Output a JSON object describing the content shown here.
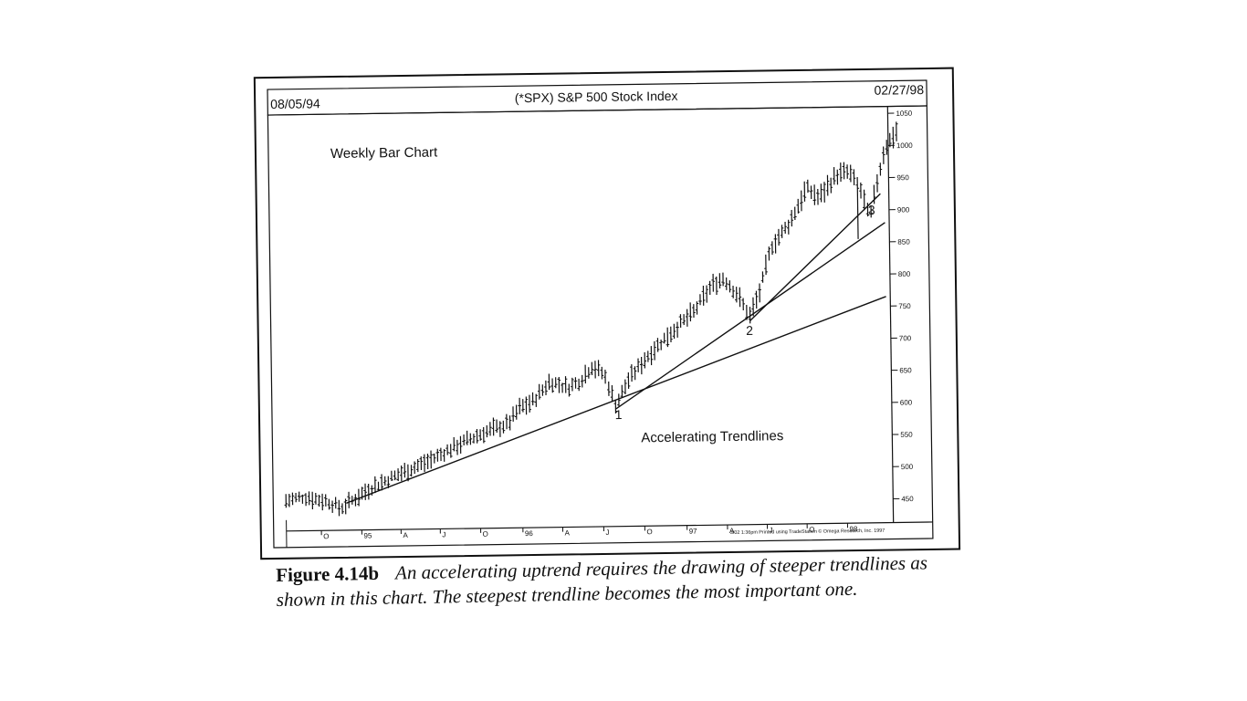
{
  "chart_data": {
    "type": "bar",
    "title": "(*SPX) S&P 500 Stock Index",
    "start_date": "08/05/94",
    "end_date": "02/27/98",
    "subtitle": "Weekly Bar Chart",
    "annotation": "Accelerating Trendlines",
    "footer_note": "3/02  1:36pm Printed using TradeStation © Omega Research, Inc. 1997",
    "ylim": [
      430,
      1065
    ],
    "yticks": [
      "1050",
      "1000",
      "950",
      "900",
      "850",
      "800",
      "750",
      "700",
      "650",
      "600",
      "550",
      "500",
      "450"
    ],
    "ytick_values": [
      1050,
      1000,
      950,
      900,
      850,
      800,
      750,
      700,
      650,
      600,
      550,
      500,
      450
    ],
    "xticks": [
      {
        "label": "O",
        "t": 0.058
      },
      {
        "label": "95",
        "t": 0.125
      },
      {
        "label": "A",
        "t": 0.19
      },
      {
        "label": "J",
        "t": 0.255
      },
      {
        "label": "O",
        "t": 0.322
      },
      {
        "label": "96",
        "t": 0.392
      },
      {
        "label": "A",
        "t": 0.458
      },
      {
        "label": "J",
        "t": 0.526
      },
      {
        "label": "O",
        "t": 0.594
      },
      {
        "label": "97",
        "t": 0.664
      },
      {
        "label": "A",
        "t": 0.731
      },
      {
        "label": "J",
        "t": 0.797
      },
      {
        "label": "O",
        "t": 0.863
      },
      {
        "label": "98",
        "t": 0.93
      }
    ],
    "trendlines": [
      {
        "label": "1",
        "from": {
          "t": 0.1,
          "v": 455
        },
        "to": {
          "t": 0.999,
          "v": 765
        }
      },
      {
        "label": "2",
        "from": {
          "t": 0.549,
          "v": 596
        },
        "to": {
          "t": 0.999,
          "v": 880
        }
      },
      {
        "label": "3",
        "from": {
          "t": 0.773,
          "v": 730
        },
        "to": {
          "t": 0.992,
          "v": 925
        }
      }
    ],
    "trendline_label_points": [
      {
        "label": "1",
        "t": 0.553,
        "v": 580
      },
      {
        "label": "2",
        "t": 0.772,
        "v": 708
      },
      {
        "label": "3",
        "t": 0.977,
        "v": 893
      }
    ],
    "anchors": [
      {
        "t": 0.0,
        "v": 460
      },
      {
        "t": 0.03,
        "v": 466
      },
      {
        "t": 0.05,
        "v": 462
      },
      {
        "t": 0.07,
        "v": 458
      },
      {
        "t": 0.09,
        "v": 447
      },
      {
        "t": 0.1,
        "v": 453
      },
      {
        "t": 0.14,
        "v": 478
      },
      {
        "t": 0.19,
        "v": 500
      },
      {
        "t": 0.24,
        "v": 520
      },
      {
        "t": 0.29,
        "v": 545
      },
      {
        "t": 0.33,
        "v": 562
      },
      {
        "t": 0.37,
        "v": 575
      },
      {
        "t": 0.39,
        "v": 600
      },
      {
        "t": 0.41,
        "v": 608
      },
      {
        "t": 0.44,
        "v": 640
      },
      {
        "t": 0.47,
        "v": 630
      },
      {
        "t": 0.49,
        "v": 640
      },
      {
        "t": 0.51,
        "v": 663
      },
      {
        "t": 0.53,
        "v": 650
      },
      {
        "t": 0.549,
        "v": 602
      },
      {
        "t": 0.57,
        "v": 640
      },
      {
        "t": 0.6,
        "v": 675
      },
      {
        "t": 0.64,
        "v": 712
      },
      {
        "t": 0.68,
        "v": 745
      },
      {
        "t": 0.71,
        "v": 785
      },
      {
        "t": 0.73,
        "v": 797
      },
      {
        "t": 0.75,
        "v": 775
      },
      {
        "t": 0.773,
        "v": 737
      },
      {
        "t": 0.79,
        "v": 775
      },
      {
        "t": 0.81,
        "v": 845
      },
      {
        "t": 0.84,
        "v": 880
      },
      {
        "t": 0.87,
        "v": 935
      },
      {
        "t": 0.89,
        "v": 920
      },
      {
        "t": 0.92,
        "v": 955
      },
      {
        "t": 0.94,
        "v": 960
      },
      {
        "t": 0.96,
        "v": 930
      },
      {
        "t": 0.974,
        "v": 885
      },
      {
        "t": 0.985,
        "v": 935
      },
      {
        "t": 1.0,
        "v": 995
      },
      {
        "t": 1.03,
        "v": 1035
      },
      {
        "t": 1.05,
        "v": 1048
      }
    ],
    "dips": [
      {
        "t": 0.549,
        "v": 591
      },
      {
        "t": 0.773,
        "v": 728
      },
      {
        "t": 0.955,
        "v": 855
      }
    ],
    "weeks": 187
  },
  "caption": {
    "label": "Figure 4.14b",
    "text": "An accelerating uptrend requires the drawing of steeper trendlines as shown in this chart. The steepest trendline becomes the most important one."
  },
  "colors": {
    "ink": "#111111",
    "paper": "#ffffff"
  }
}
